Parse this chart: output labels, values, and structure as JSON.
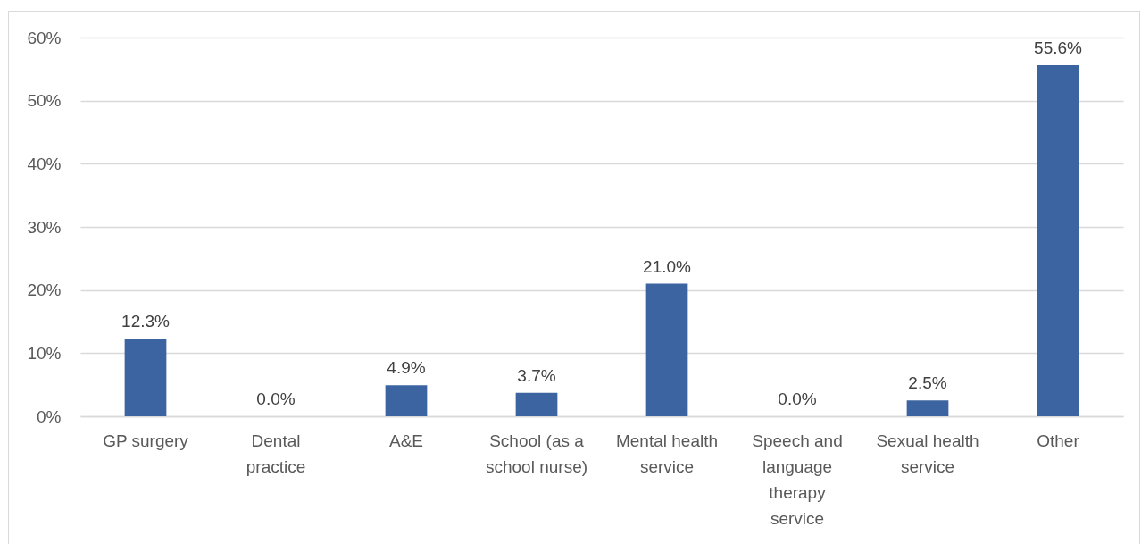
{
  "chart_data": {
    "type": "bar",
    "categories": [
      "GP surgery",
      "Dental practice",
      "A&E",
      "School (as a school nurse)",
      "Mental health service",
      "Speech and language therapy service",
      "Sexual health service",
      "Other"
    ],
    "values": [
      12.3,
      0.0,
      4.9,
      3.7,
      21.0,
      0.0,
      2.5,
      55.6
    ],
    "value_labels": [
      "12.3%",
      "0.0%",
      "4.9%",
      "3.7%",
      "21.0%",
      "0.0%",
      "2.5%",
      "55.6%"
    ],
    "color": "#3b64a0",
    "ylim": [
      0,
      60
    ],
    "yticks": [
      {
        "value": 0,
        "label": "0%"
      },
      {
        "value": 10,
        "label": "10%"
      },
      {
        "value": 20,
        "label": "20%"
      },
      {
        "value": 30,
        "label": "30%"
      },
      {
        "value": 40,
        "label": "40%"
      },
      {
        "value": 50,
        "label": "50%"
      },
      {
        "value": 60,
        "label": "60%"
      }
    ],
    "grid": "y"
  }
}
